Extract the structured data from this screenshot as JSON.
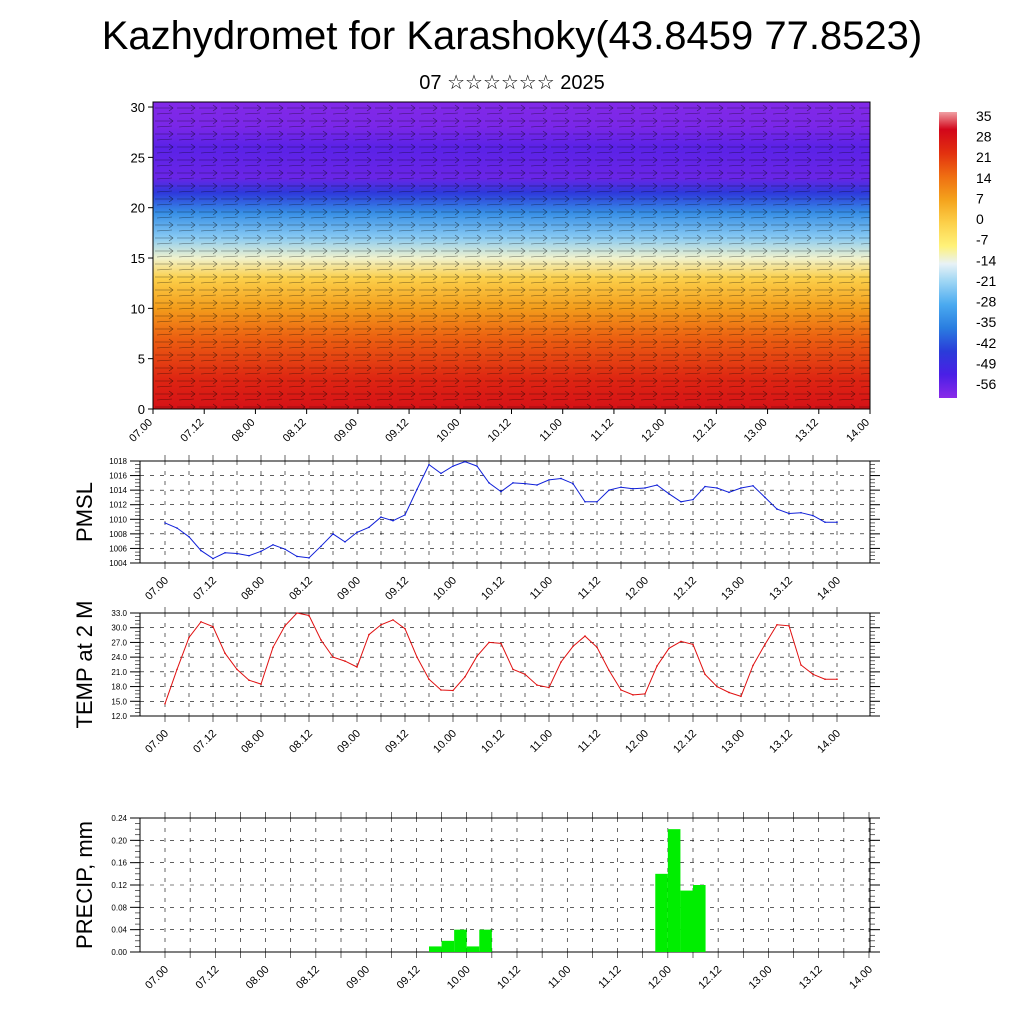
{
  "header": {
    "title": "Kazhydromet for Karashoky(43.8459 77.8523)",
    "subtitle": "07 ☆☆☆☆☆☆ 2025"
  },
  "chart_data": [
    {
      "type": "heatmap",
      "x_tick_labels": [
        "07.00",
        "07.12",
        "08.00",
        "08.12",
        "09.00",
        "09.12",
        "10.00",
        "10.12",
        "11.00",
        "11.12",
        "12.00",
        "12.12",
        "13.00",
        "13.12",
        "14.00"
      ],
      "y_tick_labels": [
        "0",
        "5",
        "10",
        "15",
        "20",
        "25",
        "30"
      ],
      "ylim": [
        0,
        30.5
      ],
      "colorbar_labels": [
        "35",
        "28",
        "21",
        "14",
        "7",
        "0",
        "-7",
        "-14",
        "-21",
        "-28",
        "-35",
        "-42",
        "-49",
        "-56"
      ],
      "colorbar_range": [
        -60,
        38
      ],
      "colors": {
        "hot": "#d2061a",
        "warm": "#f4a21c",
        "mild": "#fff27a",
        "cool": "#7ec6ee",
        "cold": "#2a3cd9",
        "coldest": "#8a2ae8"
      },
      "bands": [
        {
          "z": 0,
          "t": 30
        },
        {
          "z": 3,
          "t": 26
        },
        {
          "z": 7,
          "t": 18
        },
        {
          "z": 10,
          "t": 9
        },
        {
          "z": 13,
          "t": 0
        },
        {
          "z": 15,
          "t": -12
        },
        {
          "z": 17,
          "t": -22
        },
        {
          "z": 19.5,
          "t": -33
        },
        {
          "z": 21.5,
          "t": -45
        },
        {
          "z": 23,
          "t": -56
        },
        {
          "z": 26,
          "t": -54
        },
        {
          "z": 28,
          "t": -58
        },
        {
          "z": 30.5,
          "t": -59
        }
      ]
    },
    {
      "type": "line",
      "ylabel": "PMSL",
      "ylim": [
        1004,
        1018
      ],
      "y_tick_labels": [
        "1004",
        "1006",
        "1008",
        "1010",
        "1012",
        "1014",
        "1016",
        "1018"
      ],
      "x_tick_labels": [
        "07.00",
        "07.12",
        "08.00",
        "08.12",
        "09.00",
        "09.12",
        "10.00",
        "10.12",
        "11.00",
        "11.12",
        "12.00",
        "12.12",
        "13.00",
        "13.12",
        "14.00"
      ],
      "line_color": "#1020d8",
      "values": [
        1009.5,
        1008.8,
        1007.6,
        1005.7,
        1004.6,
        1005.4,
        1005.3,
        1005.0,
        1005.6,
        1006.5,
        1005.9,
        1004.9,
        1004.7,
        1006.3,
        1008.0,
        1006.9,
        1008.2,
        1008.9,
        1010.3,
        1009.8,
        1010.6,
        1014.1,
        1017.5,
        1016.3,
        1017.3,
        1017.9,
        1017.3,
        1015.0,
        1013.8,
        1015.0,
        1014.9,
        1014.7,
        1015.4,
        1015.6,
        1014.9,
        1012.4,
        1012.4,
        1014.0,
        1014.4,
        1014.2,
        1014.3,
        1014.7,
        1013.5,
        1012.4,
        1012.7,
        1014.5,
        1014.3,
        1013.7,
        1014.3,
        1014.6,
        1013.0,
        1011.4,
        1010.8,
        1010.9,
        1010.5,
        1009.6,
        1009.6
      ]
    },
    {
      "type": "line",
      "ylabel": "TEMP at 2 M",
      "ylim": [
        12,
        33
      ],
      "y_tick_labels": [
        "12.0",
        "15.0",
        "18.0",
        "21.0",
        "24.0",
        "27.0",
        "30.0",
        "33.0"
      ],
      "x_tick_labels": [
        "07.00",
        "07.12",
        "08.00",
        "08.12",
        "09.00",
        "09.12",
        "10.00",
        "10.12",
        "11.00",
        "11.12",
        "12.00",
        "12.12",
        "13.00",
        "13.12",
        "14.00"
      ],
      "line_color": "#e01010",
      "values": [
        14.5,
        21.5,
        28.0,
        31.2,
        30.2,
        24.8,
        21.5,
        19.3,
        18.5,
        26.0,
        30.4,
        33.0,
        32.5,
        27.5,
        24.0,
        23.2,
        22.0,
        28.6,
        30.6,
        31.6,
        29.8,
        24.0,
        19.5,
        17.3,
        17.2,
        20.0,
        24.2,
        27.0,
        26.8,
        21.5,
        20.5,
        18.3,
        17.8,
        23.0,
        26.2,
        28.3,
        26.0,
        21.3,
        17.3,
        16.3,
        16.5,
        22.2,
        25.8,
        27.2,
        26.6,
        20.5,
        18.0,
        16.8,
        16.0,
        22.3,
        26.6,
        30.6,
        30.4,
        22.4,
        20.5,
        19.5,
        19.5
      ]
    },
    {
      "type": "bar",
      "ylabel": "PRECIP, mm",
      "ylim": [
        0,
        0.24
      ],
      "y_tick_labels": [
        "0.00",
        "0.04",
        "0.08",
        "0.12",
        "0.16",
        "0.20",
        "0.24"
      ],
      "x_tick_labels": [
        "07.00",
        "07.12",
        "08.00",
        "08.12",
        "09.00",
        "09.12",
        "10.00",
        "10.12",
        "11.00",
        "11.12",
        "12.00",
        "12.12",
        "13.00",
        "13.12",
        "14.00"
      ],
      "bar_color": "#00ee00",
      "values": [
        0,
        0,
        0,
        0,
        0,
        0,
        0,
        0,
        0,
        0,
        0,
        0,
        0,
        0,
        0,
        0,
        0,
        0,
        0,
        0,
        0,
        0.01,
        0.02,
        0.04,
        0.01,
        0.04,
        0,
        0,
        0,
        0,
        0,
        0,
        0,
        0,
        0,
        0,
        0,
        0,
        0,
        0.14,
        0.22,
        0.11,
        0.12,
        0,
        0,
        0,
        0,
        0,
        0,
        0,
        0,
        0,
        0,
        0,
        0,
        0
      ]
    }
  ]
}
